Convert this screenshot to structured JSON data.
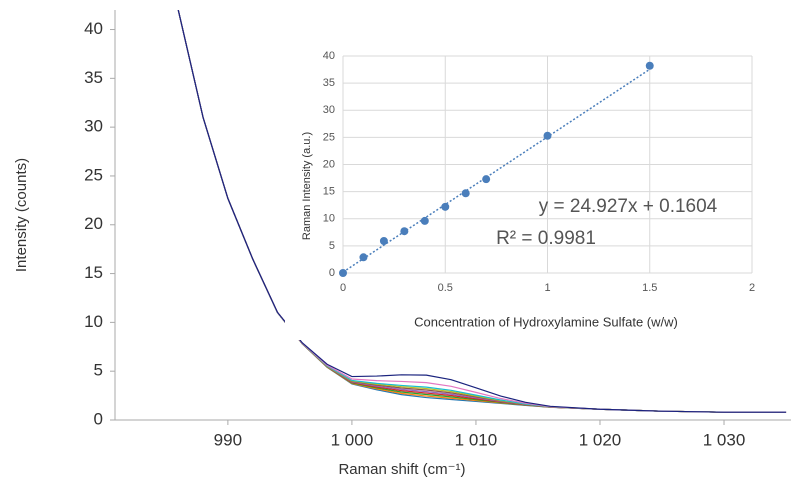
{
  "chart_data": [
    {
      "type": "line",
      "x_label": "Raman shift (cm⁻¹)",
      "y_label": "Intensity (counts)",
      "x": [
        986,
        988,
        990,
        992,
        994,
        996,
        998,
        1000,
        1002,
        1004,
        1006,
        1008,
        1010,
        1012,
        1014,
        1016,
        1020,
        1025,
        1030,
        1035
      ],
      "xlim": [
        980.9,
        1035.4
      ],
      "ylim": [
        0,
        42
      ],
      "xticks": [
        990,
        {
          "value": 1000,
          "label": "1 000"
        },
        {
          "value": 1010,
          "label": "1 010"
        },
        {
          "value": 1020,
          "label": "1 020"
        },
        {
          "value": 1030,
          "label": "1 030"
        }
      ],
      "yticks": [
        0,
        5,
        10,
        15,
        20,
        25,
        30,
        35,
        40
      ],
      "grid": false,
      "series": [
        {
          "color": "#1f77b4",
          "values": [
            42,
            31,
            22.7,
            16.5,
            11,
            7.8,
            5.4,
            3.7,
            3.1,
            2.6,
            2.3,
            2.1,
            1.9,
            1.7,
            1.5,
            1.3,
            1.1,
            0.9,
            0.8,
            0.8
          ]
        },
        {
          "color": "#ff7f0e",
          "values": [
            42,
            31,
            22.7,
            16.5,
            11,
            7.81,
            5.42,
            3.75,
            3.19,
            2.73,
            2.45,
            2.23,
            1.99,
            1.75,
            1.52,
            1.31,
            1.1,
            0.9,
            0.8,
            0.8
          ]
        },
        {
          "color": "#2ca02c",
          "values": [
            42,
            31,
            22.7,
            16.5,
            11,
            7.81,
            5.44,
            3.8,
            3.29,
            2.87,
            2.61,
            2.37,
            2.09,
            1.8,
            1.54,
            1.31,
            1.1,
            0.9,
            0.8,
            0.8
          ]
        },
        {
          "color": "#d62728",
          "values": [
            42,
            31,
            22.7,
            16.5,
            11.01,
            7.82,
            5.46,
            3.85,
            3.38,
            3.01,
            2.76,
            2.51,
            2.18,
            1.85,
            1.56,
            1.32,
            1.1,
            0.9,
            0.8,
            0.8
          ]
        },
        {
          "color": "#9467bd",
          "values": [
            42,
            31,
            22.7,
            16.5,
            11.01,
            7.83,
            5.48,
            3.9,
            3.47,
            3.14,
            2.91,
            2.64,
            2.27,
            1.9,
            1.58,
            1.33,
            1.1,
            0.9,
            0.8,
            0.8
          ]
        },
        {
          "color": "#8c564b",
          "values": [
            42,
            31,
            22.7,
            16.5,
            11.01,
            7.83,
            5.5,
            3.95,
            3.57,
            3.28,
            3.07,
            2.78,
            2.37,
            1.95,
            1.6,
            1.33,
            1.1,
            0.9,
            0.8,
            0.8
          ]
        },
        {
          "color": "#bcbd22",
          "values": [
            42,
            31,
            22.7,
            16.5,
            11.01,
            7.84,
            5.52,
            4.0,
            3.66,
            3.41,
            3.22,
            2.91,
            2.46,
            2.0,
            1.62,
            1.34,
            1.1,
            0.9,
            0.8,
            0.8
          ]
        },
        {
          "color": "#17becf",
          "values": [
            42,
            31,
            22.7,
            16.5,
            11.01,
            7.85,
            5.54,
            4.05,
            3.75,
            3.54,
            3.37,
            3.04,
            2.55,
            2.05,
            1.64,
            1.35,
            1.1,
            0.9,
            0.8,
            0.8
          ]
        },
        {
          "color": "#e377c2",
          "values": [
            42,
            31,
            22.7,
            16.5,
            11.02,
            7.87,
            5.61,
            4.2,
            4.03,
            3.95,
            3.83,
            3.45,
            2.83,
            2.2,
            1.71,
            1.37,
            1.1,
            0.9,
            0.8,
            0.8
          ]
        },
        {
          "color": "#1a237e",
          "values": [
            42,
            31,
            22.7,
            16.5,
            11.03,
            7.9,
            5.71,
            4.45,
            4.5,
            4.63,
            4.6,
            4.13,
            3.3,
            2.45,
            1.81,
            1.4,
            1.1,
            0.9,
            0.8,
            0.8
          ]
        }
      ]
    },
    {
      "type": "scatter",
      "x_label": "Concentration of Hydroxylamine Sulfate    (w/w)",
      "y_label": "Raman Intensity (a.u.)",
      "x": [
        0,
        0.1,
        0.2,
        0.3,
        0.4,
        0.5,
        0.6,
        0.7,
        1,
        1.5
      ],
      "values": [
        0,
        2.9,
        5.9,
        7.7,
        9.6,
        12.2,
        14.7,
        17.3,
        25.3,
        38.2
      ],
      "color": "#4a7ebb",
      "xlim": [
        0,
        2
      ],
      "ylim": [
        0,
        40
      ],
      "xticks": [
        0,
        0.5,
        1,
        1.5,
        2
      ],
      "yticks": [
        0,
        5,
        10,
        15,
        20,
        25,
        30,
        35,
        40
      ],
      "grid": true,
      "trendline": {
        "slope": 24.927,
        "intercept": 0.1604,
        "label": "y = 24.927x + 0.1604"
      },
      "r2_label": "R² = 0.9981"
    }
  ]
}
